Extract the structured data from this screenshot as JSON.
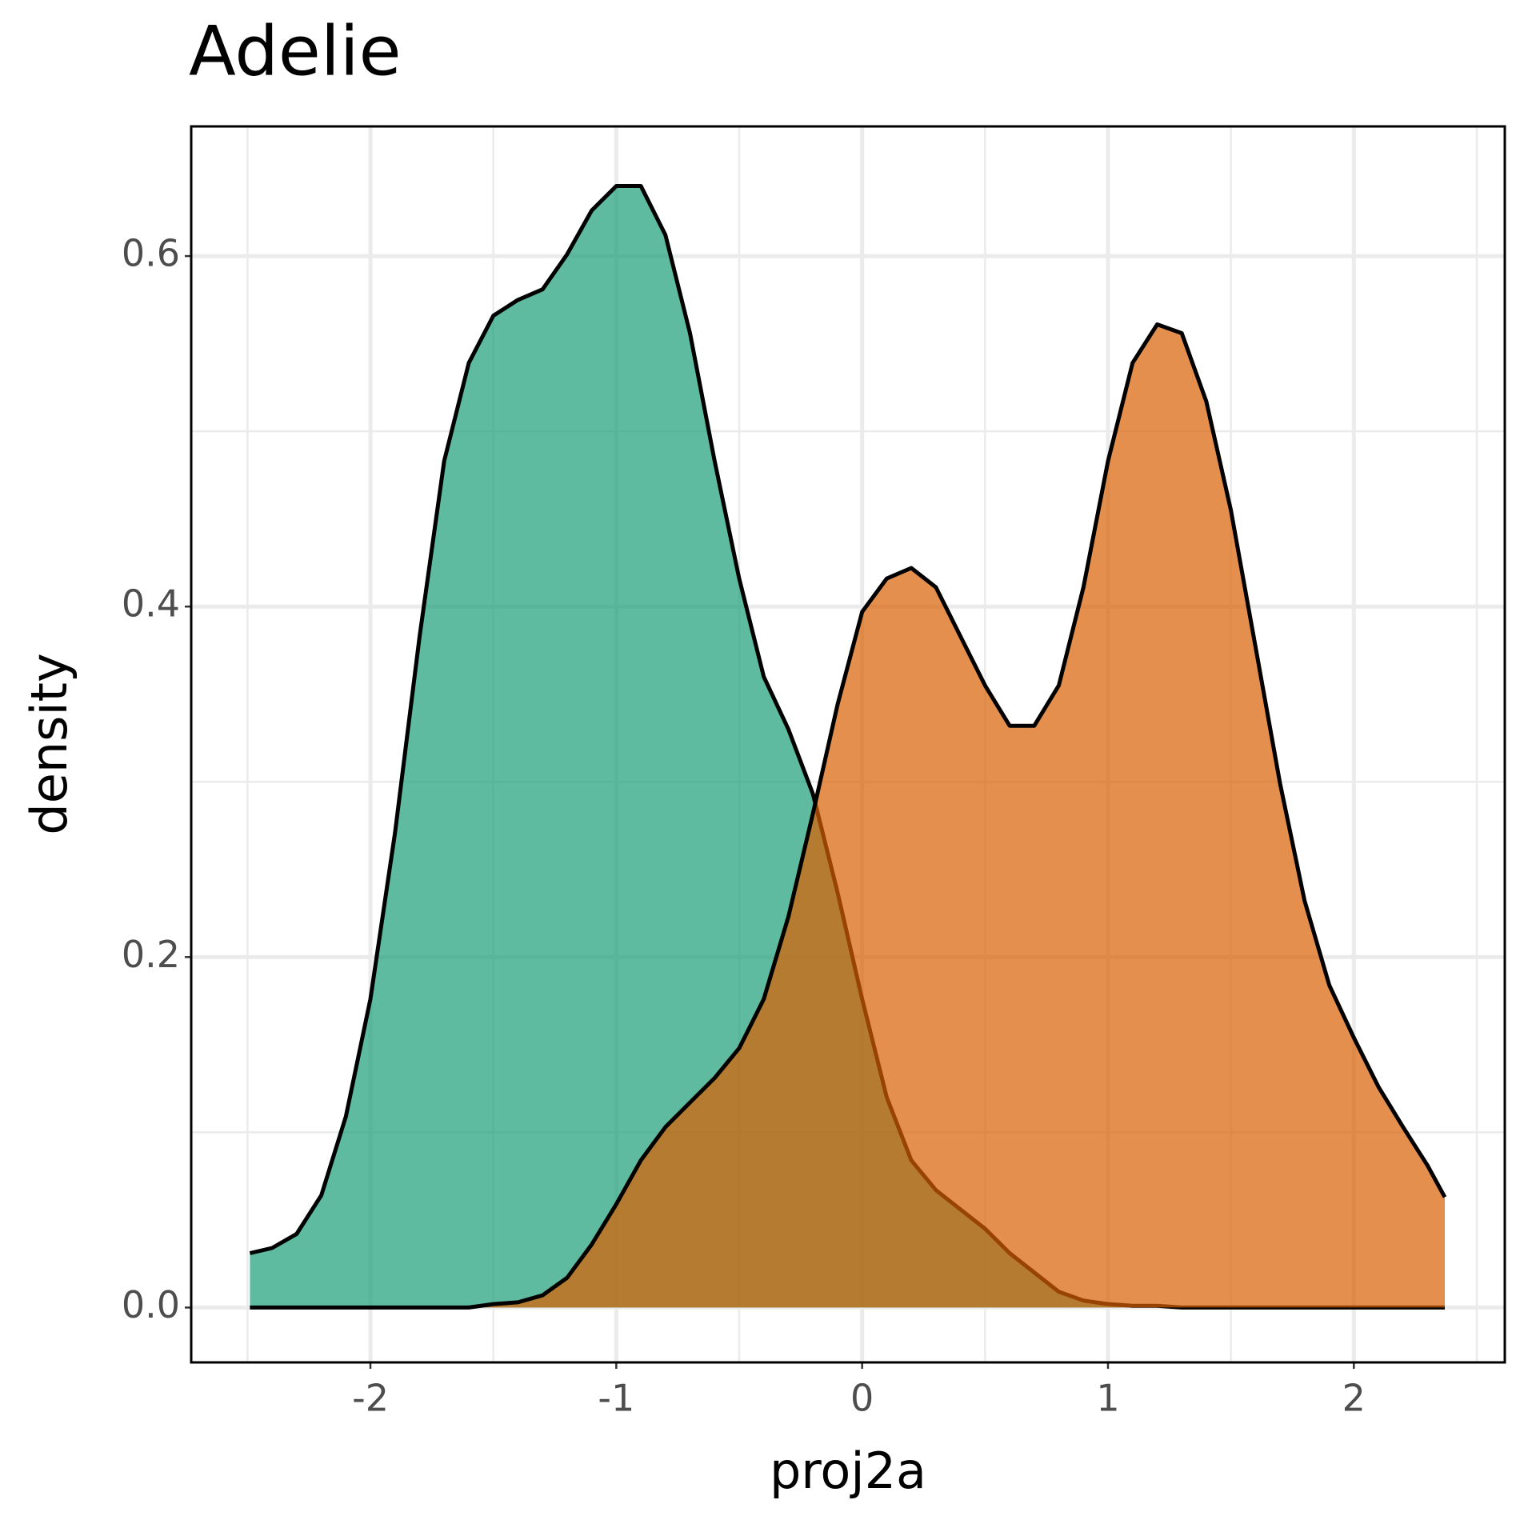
{
  "chart_data": {
    "type": "density",
    "title": "Adelie",
    "xlabel": "proj2a",
    "ylabel": "density",
    "x": [
      -2.49,
      -2.4,
      -2.3,
      -2.2,
      -2.1,
      -2.0,
      -1.9,
      -1.8,
      -1.7,
      -1.6,
      -1.5,
      -1.4,
      -1.3,
      -1.2,
      -1.1,
      -1.0,
      -0.9,
      -0.8,
      -0.7,
      -0.6,
      -0.5,
      -0.4,
      -0.3,
      -0.2,
      -0.1,
      0,
      0.1,
      0.2,
      0.3,
      0.4,
      0.5,
      0.6,
      0.7,
      0.8,
      0.9,
      1.0,
      1.1,
      1.2,
      1.3,
      1.4,
      1.5,
      1.6,
      1.7,
      1.8,
      1.9,
      2.0,
      2.1,
      2.2,
      2.3,
      2.37
    ],
    "series": [
      {
        "color": "#1b9e77",
        "values": [
          0.031,
          0.034,
          0.042,
          0.064,
          0.109,
          0.176,
          0.271,
          0.383,
          0.483,
          0.539,
          0.566,
          0.575,
          0.581,
          0.601,
          0.626,
          0.64,
          0.64,
          0.612,
          0.556,
          0.483,
          0.416,
          0.36,
          0.33,
          0.293,
          0.237,
          0.176,
          0.12,
          0.084,
          0.067,
          0.056,
          0.045,
          0.031,
          0.02,
          0.009,
          0.004,
          0.002,
          0.001,
          0.001,
          0,
          0,
          0,
          0,
          0,
          0,
          0,
          0,
          0,
          0,
          0,
          0
        ]
      },
      {
        "color": "#d95f02",
        "values": [
          0,
          0,
          0,
          0,
          0,
          0,
          0,
          0,
          0,
          0,
          0.002,
          0.003,
          0.007,
          0.017,
          0.036,
          0.059,
          0.084,
          0.103,
          0.117,
          0.131,
          0.148,
          0.176,
          0.223,
          0.282,
          0.344,
          0.397,
          0.416,
          0.422,
          0.411,
          0.383,
          0.355,
          0.332,
          0.332,
          0.355,
          0.411,
          0.483,
          0.539,
          0.561,
          0.556,
          0.517,
          0.455,
          0.377,
          0.299,
          0.232,
          0.184,
          0.154,
          0.126,
          0.103,
          0.081,
          0.063
        ]
      }
    ],
    "alpha": 0.7,
    "xlim": [
      -2.729,
      2.614
    ],
    "ylim": [
      -0.0313,
      0.674
    ],
    "xticks": [
      -2,
      -1,
      0,
      1,
      2
    ],
    "yticks": [
      {
        "value": 0,
        "label": "0.0"
      },
      0.2,
      0.4,
      0.6
    ],
    "x_minor_ticks": [
      -2.5,
      -1.5,
      -0.5,
      0.5,
      1.5,
      2.5
    ],
    "y_minor_ticks": [
      0.1,
      0.3,
      0.5
    ],
    "grid": true
  }
}
